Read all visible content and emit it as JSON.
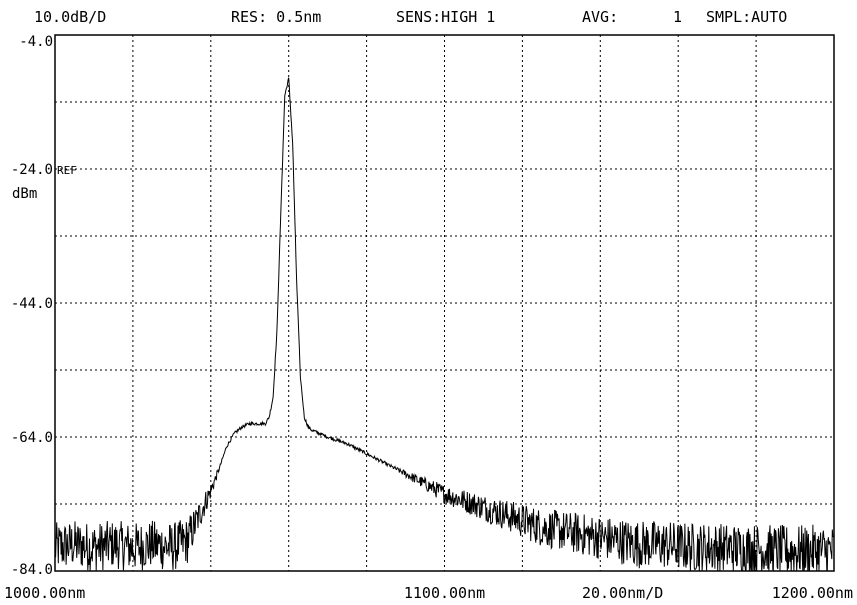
{
  "header": {
    "scale": "10.0dB/D",
    "resolution": "RES: 0.5nm",
    "sensitivity": "SENS:HIGH 1",
    "average_label": "AVG:",
    "average_value": "1",
    "sampling": "SMPL:AUTO"
  },
  "y_axis": {
    "ref_marker": "REF",
    "unit": "dBm"
  },
  "x_axis": {
    "scale_per_div": "20.00nm/D"
  },
  "colors": {
    "background": "#ffffff",
    "trace": "#000000",
    "grid": "#000000"
  },
  "chart_data": {
    "type": "line",
    "title": "",
    "xlabel": "",
    "ylabel": "dBm",
    "xlim": [
      1000.0,
      1200.0
    ],
    "ylim": [
      -84.0,
      -4.0
    ],
    "grid": true,
    "x_divisions": 10,
    "y_divisions": 8,
    "y_ticks": [
      {
        "value": -4.0,
        "label": "-4.0"
      },
      {
        "value": -24.0,
        "label": "-24.0"
      },
      {
        "value": -44.0,
        "label": "-44.0"
      },
      {
        "value": -64.0,
        "label": "-64.0"
      },
      {
        "value": -84.0,
        "label": "-84.0"
      }
    ],
    "x_ticks": [
      {
        "value": 1000.0,
        "label": "1000.00nm"
      },
      {
        "value": 1100.0,
        "label": "1100.00nm"
      },
      {
        "value": 1200.0,
        "label": "1200.00nm"
      }
    ],
    "series": [
      {
        "x": [
          1000,
          1005,
          1010,
          1015,
          1020,
          1025,
          1030,
          1034,
          1036,
          1038,
          1040,
          1042,
          1044,
          1046,
          1048,
          1050,
          1052,
          1054,
          1055,
          1056,
          1057,
          1058,
          1059,
          1060,
          1061,
          1062,
          1063,
          1064,
          1065,
          1066,
          1068,
          1070,
          1075,
          1080,
          1085,
          1090,
          1095,
          1100,
          1105,
          1110,
          1115,
          1120,
          1125,
          1130,
          1135,
          1140,
          1145,
          1150,
          1155,
          1160,
          1165,
          1170,
          1175,
          1180,
          1185,
          1190,
          1195,
          1200
        ],
        "y": [
          -80.5,
          -80.0,
          -80.5,
          -80.0,
          -80.5,
          -80.0,
          -80.5,
          -79.5,
          -77.0,
          -74.5,
          -72.0,
          -69.0,
          -65.5,
          -63.5,
          -62.5,
          -62.0,
          -62.0,
          -62.0,
          -61.0,
          -58.0,
          -48.0,
          -30.0,
          -13.0,
          -10.5,
          -20.0,
          -40.0,
          -55.0,
          -61.0,
          -62.5,
          -63.0,
          -63.5,
          -64.0,
          -65.0,
          -66.5,
          -68.0,
          -69.5,
          -71.0,
          -72.5,
          -73.5,
          -74.5,
          -75.5,
          -76.5,
          -77.5,
          -78.0,
          -78.5,
          -79.0,
          -79.5,
          -80.0,
          -80.0,
          -80.3,
          -80.5,
          -80.5,
          -80.7,
          -80.7,
          -81.0,
          -81.0,
          -81.0,
          -81.0
        ],
        "noise_floor": -80.5,
        "noise_amplitude": 3.5
      }
    ]
  }
}
